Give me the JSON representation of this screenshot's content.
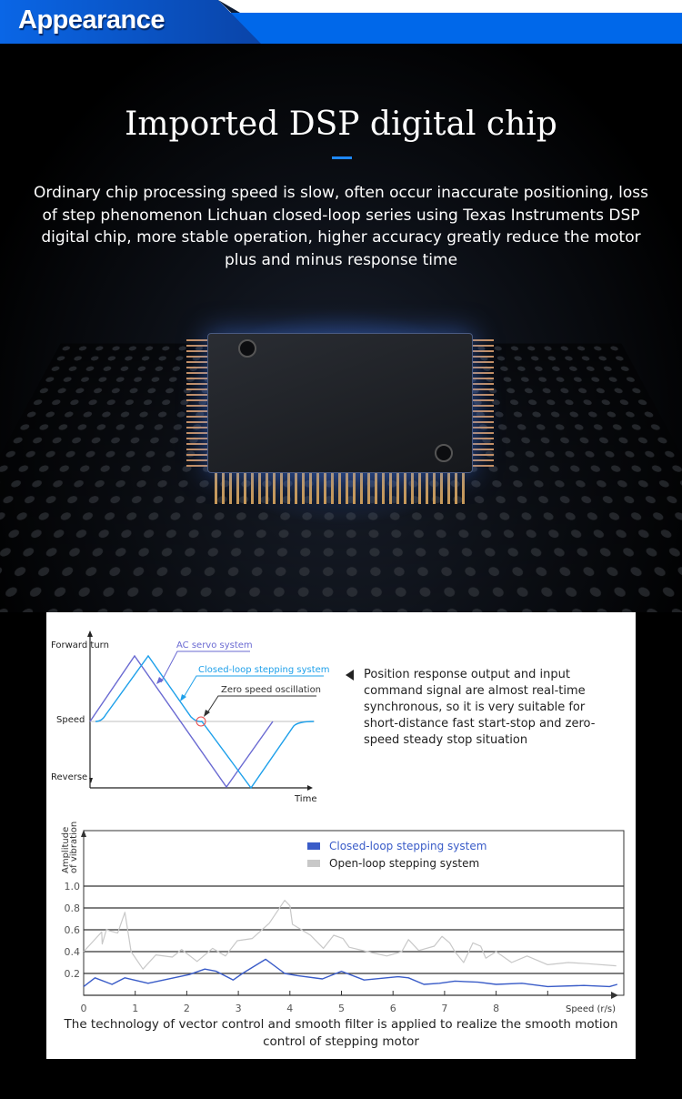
{
  "header": {
    "title": "Appearance"
  },
  "hero": {
    "title": "Imported DSP digital chip",
    "description": "Ordinary chip processing speed is slow, often occur inaccurate positioning, loss of step phenomenon Lichuan closed-loop series using Texas Instruments DSP digital chip, more stable operation, higher accuracy greatly reduce the motor plus and minus response time"
  },
  "response_diagram": {
    "y_top_label": "Forward turn",
    "y_mid_label": "Speed",
    "y_bottom_label": "Reverse",
    "x_label": "Time",
    "ac_servo_label": "AC servo system",
    "closed_loop_label": "Closed-loop stepping system",
    "zero_speed_label": "Zero speed oscillation",
    "colors": {
      "ac_servo": "#6a6ad2",
      "closed_loop": "#1ea0ea",
      "zero_marker": "#e84a4a"
    },
    "note": "Position response output and input command signal are almost real-time synchronous, so it is very suitable for short-distance fast start-stop and zero-speed steady stop situation"
  },
  "chart_data": {
    "type": "line",
    "title": "",
    "xlabel": "Speed (r/s)",
    "ylabel": "Amplitude of vibration",
    "xlim": [
      0,
      10.4
    ],
    "ylim": [
      0,
      1.0
    ],
    "x_ticks": [
      "0",
      "1",
      "2",
      "3",
      "4",
      "5",
      "6",
      "7",
      "8"
    ],
    "y_ticks": [
      "0.2",
      "0.4",
      "0.6",
      "0.8",
      "1.0"
    ],
    "grid": true,
    "legend": "top-center",
    "series": [
      {
        "name": "Closed-loop stepping system",
        "color": "#3a5cc8",
        "points": [
          [
            0,
            0.08
          ],
          [
            0.22,
            0.16
          ],
          [
            0.55,
            0.1
          ],
          [
            0.8,
            0.16
          ],
          [
            1.25,
            0.11
          ],
          [
            2.05,
            0.19
          ],
          [
            2.35,
            0.24
          ],
          [
            2.57,
            0.22
          ],
          [
            2.9,
            0.14
          ],
          [
            3.08,
            0.2
          ],
          [
            3.53,
            0.33
          ],
          [
            3.9,
            0.2
          ],
          [
            4.15,
            0.18
          ],
          [
            4.63,
            0.15
          ],
          [
            5.0,
            0.22
          ],
          [
            5.44,
            0.14
          ],
          [
            6.1,
            0.17
          ],
          [
            6.3,
            0.16
          ],
          [
            6.6,
            0.1
          ],
          [
            6.9,
            0.11
          ],
          [
            7.2,
            0.13
          ],
          [
            7.65,
            0.12
          ],
          [
            8.0,
            0.1
          ],
          [
            8.5,
            0.11
          ],
          [
            9.0,
            0.08
          ],
          [
            9.7,
            0.09
          ],
          [
            10.2,
            0.08
          ],
          [
            10.35,
            0.1
          ]
        ]
      },
      {
        "name": "Open-loop stepping system",
        "color": "#c8c8c8",
        "points": [
          [
            0,
            0.4
          ],
          [
            0.35,
            0.58
          ],
          [
            0.36,
            0.47
          ],
          [
            0.44,
            0.6
          ],
          [
            0.66,
            0.57
          ],
          [
            0.8,
            0.76
          ],
          [
            0.92,
            0.4
          ],
          [
            1.15,
            0.24
          ],
          [
            1.4,
            0.37
          ],
          [
            1.72,
            0.35
          ],
          [
            1.9,
            0.42
          ],
          [
            2.2,
            0.31
          ],
          [
            2.5,
            0.43
          ],
          [
            2.75,
            0.36
          ],
          [
            2.98,
            0.5
          ],
          [
            3.27,
            0.52
          ],
          [
            3.6,
            0.66
          ],
          [
            3.9,
            0.87
          ],
          [
            4.0,
            0.82
          ],
          [
            4.05,
            0.65
          ],
          [
            4.4,
            0.55
          ],
          [
            4.65,
            0.43
          ],
          [
            4.85,
            0.55
          ],
          [
            5.03,
            0.52
          ],
          [
            5.15,
            0.44
          ],
          [
            5.5,
            0.4
          ],
          [
            5.88,
            0.36
          ],
          [
            6.17,
            0.4
          ],
          [
            6.3,
            0.51
          ],
          [
            6.5,
            0.41
          ],
          [
            6.8,
            0.45
          ],
          [
            6.95,
            0.54
          ],
          [
            7.1,
            0.48
          ],
          [
            7.2,
            0.4
          ],
          [
            7.37,
            0.3
          ],
          [
            7.55,
            0.48
          ],
          [
            7.7,
            0.45
          ],
          [
            7.8,
            0.34
          ],
          [
            8.0,
            0.4
          ],
          [
            8.3,
            0.3
          ],
          [
            8.6,
            0.36
          ],
          [
            9.0,
            0.28
          ],
          [
            9.4,
            0.3
          ],
          [
            9.76,
            0.29
          ],
          [
            10.33,
            0.27
          ]
        ]
      }
    ]
  },
  "caption": "The technology of vector control and smooth filter is applied to realize the smooth motion control of stepping motor"
}
